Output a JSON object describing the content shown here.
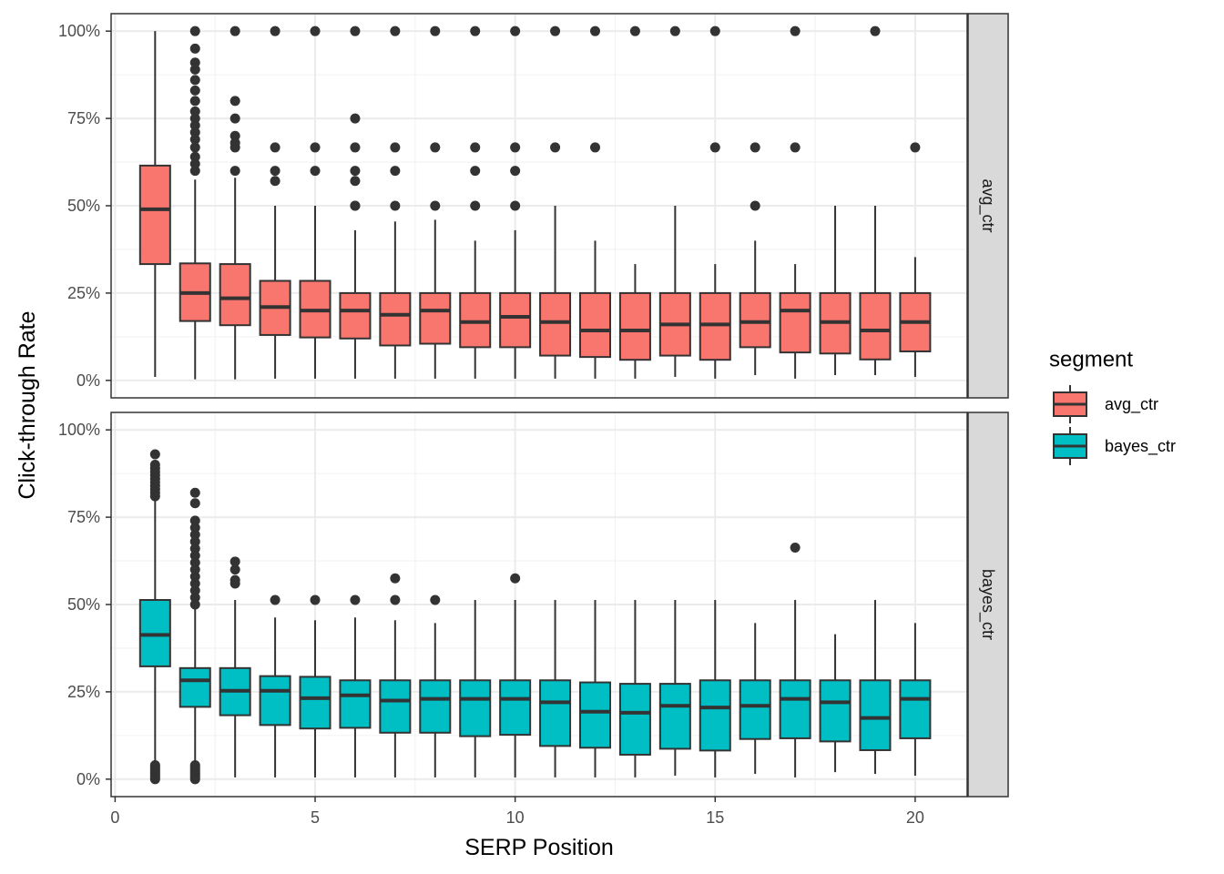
{
  "chart_data": {
    "type": "boxplot",
    "xlabel": "SERP Position",
    "ylabel": "Click-through Rate",
    "xlim": [
      -0.1,
      21.3
    ],
    "ylim": [
      -0.05,
      1.05
    ],
    "x_ticks": [
      0,
      5,
      10,
      15,
      20
    ],
    "x_tick_labels": [
      "0",
      "5",
      "10",
      "15",
      "20"
    ],
    "y_ticks": [
      0,
      0.25,
      0.5,
      0.75,
      1.0
    ],
    "y_tick_labels": [
      "0%",
      "25%",
      "50%",
      "75%",
      "100%"
    ],
    "grid": true,
    "legend": {
      "title": "segment",
      "position": "right",
      "entries": [
        {
          "label": "avg_ctr",
          "color": "#F8766D"
        },
        {
          "label": "bayes_ctr",
          "color": "#00BFC4"
        }
      ]
    },
    "panels": [
      {
        "strip": "avg_ctr",
        "color": "#F8766D",
        "boxes": [
          {
            "x": 1,
            "lower_whisker": 0.01,
            "q1": 0.333,
            "median": 0.49,
            "q3": 0.615,
            "upper_whisker": 1.0,
            "outliers": []
          },
          {
            "x": 2,
            "lower_whisker": 0.003,
            "q1": 0.17,
            "median": 0.25,
            "q3": 0.335,
            "upper_whisker": 0.575,
            "outliers": [
              0.6,
              0.62,
              0.64,
              0.667,
              0.69,
              0.71,
              0.73,
              0.75,
              0.77,
              0.8,
              0.83,
              0.86,
              0.89,
              0.91,
              0.95,
              1.0
            ]
          },
          {
            "x": 3,
            "lower_whisker": 0.003,
            "q1": 0.158,
            "median": 0.235,
            "q3": 0.333,
            "upper_whisker": 0.58,
            "outliers": [
              0.6,
              0.667,
              0.68,
              0.7,
              0.75,
              0.8,
              1.0
            ]
          },
          {
            "x": 4,
            "lower_whisker": 0.005,
            "q1": 0.13,
            "median": 0.21,
            "q3": 0.285,
            "upper_whisker": 0.5,
            "outliers": [
              0.571,
              0.6,
              0.667,
              1.0
            ]
          },
          {
            "x": 5,
            "lower_whisker": 0.005,
            "q1": 0.123,
            "median": 0.2,
            "q3": 0.285,
            "upper_whisker": 0.5,
            "outliers": [
              0.6,
              0.667,
              1.0
            ]
          },
          {
            "x": 6,
            "lower_whisker": 0.005,
            "q1": 0.12,
            "median": 0.2,
            "q3": 0.25,
            "upper_whisker": 0.43,
            "outliers": [
              0.5,
              0.5,
              0.571,
              0.6,
              0.667,
              0.75,
              1.0
            ]
          },
          {
            "x": 7,
            "lower_whisker": 0.005,
            "q1": 0.1,
            "median": 0.188,
            "q3": 0.25,
            "upper_whisker": 0.455,
            "outliers": [
              0.5,
              0.6,
              0.667,
              1.0
            ]
          },
          {
            "x": 8,
            "lower_whisker": 0.005,
            "q1": 0.105,
            "median": 0.2,
            "q3": 0.25,
            "upper_whisker": 0.46,
            "outliers": [
              0.5,
              0.667,
              1.0
            ]
          },
          {
            "x": 9,
            "lower_whisker": 0.005,
            "q1": 0.095,
            "median": 0.167,
            "q3": 0.25,
            "upper_whisker": 0.4,
            "outliers": [
              0.5,
              0.6,
              0.667,
              1.0
            ]
          },
          {
            "x": 10,
            "lower_whisker": 0.005,
            "q1": 0.095,
            "median": 0.182,
            "q3": 0.25,
            "upper_whisker": 0.43,
            "outliers": [
              0.5,
              0.6,
              0.667,
              1.0
            ]
          },
          {
            "x": 11,
            "lower_whisker": 0.005,
            "q1": 0.071,
            "median": 0.167,
            "q3": 0.25,
            "upper_whisker": 0.5,
            "outliers": [
              0.667,
              1.0
            ]
          },
          {
            "x": 12,
            "lower_whisker": 0.005,
            "q1": 0.067,
            "median": 0.143,
            "q3": 0.25,
            "upper_whisker": 0.4,
            "outliers": [
              0.667,
              1.0
            ]
          },
          {
            "x": 13,
            "lower_whisker": 0.005,
            "q1": 0.059,
            "median": 0.143,
            "q3": 0.25,
            "upper_whisker": 0.333,
            "outliers": [
              1.0
            ]
          },
          {
            "x": 14,
            "lower_whisker": 0.01,
            "q1": 0.071,
            "median": 0.16,
            "q3": 0.25,
            "upper_whisker": 0.5,
            "outliers": [
              1.0
            ]
          },
          {
            "x": 15,
            "lower_whisker": 0.005,
            "q1": 0.059,
            "median": 0.16,
            "q3": 0.25,
            "upper_whisker": 0.333,
            "outliers": [
              0.667,
              1.0
            ]
          },
          {
            "x": 16,
            "lower_whisker": 0.015,
            "q1": 0.095,
            "median": 0.167,
            "q3": 0.25,
            "upper_whisker": 0.4,
            "outliers": [
              0.5,
              0.667
            ]
          },
          {
            "x": 17,
            "lower_whisker": 0.005,
            "q1": 0.08,
            "median": 0.2,
            "q3": 0.25,
            "upper_whisker": 0.333,
            "outliers": [
              0.667,
              1.0
            ]
          },
          {
            "x": 18,
            "lower_whisker": 0.015,
            "q1": 0.077,
            "median": 0.167,
            "q3": 0.25,
            "upper_whisker": 0.5,
            "outliers": []
          },
          {
            "x": 19,
            "lower_whisker": 0.015,
            "q1": 0.06,
            "median": 0.143,
            "q3": 0.25,
            "upper_whisker": 0.5,
            "outliers": [
              1.0
            ]
          },
          {
            "x": 20,
            "lower_whisker": 0.01,
            "q1": 0.083,
            "median": 0.167,
            "q3": 0.25,
            "upper_whisker": 0.353,
            "outliers": [
              0.667
            ]
          }
        ]
      },
      {
        "strip": "bayes_ctr",
        "color": "#00BFC4",
        "boxes": [
          {
            "x": 1,
            "lower_whisker": 0.045,
            "q1": 0.323,
            "median": 0.413,
            "q3": 0.513,
            "upper_whisker": 0.805,
            "outliers": [
              0.0,
              0.005,
              0.01,
              0.015,
              0.02,
              0.025,
              0.03,
              0.035,
              0.04,
              0.81,
              0.82,
              0.83,
              0.84,
              0.85,
              0.86,
              0.87,
              0.88,
              0.89,
              0.9,
              0.93
            ]
          },
          {
            "x": 2,
            "lower_whisker": 0.045,
            "q1": 0.207,
            "median": 0.283,
            "q3": 0.318,
            "upper_whisker": 0.495,
            "outliers": [
              0.0,
              0.005,
              0.01,
              0.015,
              0.02,
              0.025,
              0.03,
              0.035,
              0.04,
              0.5,
              0.52,
              0.54,
              0.56,
              0.58,
              0.6,
              0.62,
              0.64,
              0.66,
              0.68,
              0.7,
              0.72,
              0.74,
              0.79,
              0.82
            ]
          },
          {
            "x": 3,
            "lower_whisker": 0.005,
            "q1": 0.183,
            "median": 0.253,
            "q3": 0.318,
            "upper_whisker": 0.513,
            "outliers": [
              0.56,
              0.57,
              0.6,
              0.623
            ]
          },
          {
            "x": 4,
            "lower_whisker": 0.005,
            "q1": 0.155,
            "median": 0.253,
            "q3": 0.295,
            "upper_whisker": 0.463,
            "outliers": [
              0.513
            ]
          },
          {
            "x": 5,
            "lower_whisker": 0.005,
            "q1": 0.145,
            "median": 0.232,
            "q3": 0.293,
            "upper_whisker": 0.455,
            "outliers": [
              0.513
            ]
          },
          {
            "x": 6,
            "lower_whisker": 0.005,
            "q1": 0.147,
            "median": 0.24,
            "q3": 0.283,
            "upper_whisker": 0.463,
            "outliers": [
              0.513
            ]
          },
          {
            "x": 7,
            "lower_whisker": 0.005,
            "q1": 0.133,
            "median": 0.225,
            "q3": 0.283,
            "upper_whisker": 0.455,
            "outliers": [
              0.513,
              0.575
            ]
          },
          {
            "x": 8,
            "lower_whisker": 0.005,
            "q1": 0.133,
            "median": 0.23,
            "q3": 0.283,
            "upper_whisker": 0.447,
            "outliers": [
              0.513
            ]
          },
          {
            "x": 9,
            "lower_whisker": 0.005,
            "q1": 0.123,
            "median": 0.23,
            "q3": 0.283,
            "upper_whisker": 0.513,
            "outliers": []
          },
          {
            "x": 10,
            "lower_whisker": 0.005,
            "q1": 0.127,
            "median": 0.23,
            "q3": 0.283,
            "upper_whisker": 0.513,
            "outliers": [
              0.575
            ]
          },
          {
            "x": 11,
            "lower_whisker": 0.005,
            "q1": 0.095,
            "median": 0.22,
            "q3": 0.283,
            "upper_whisker": 0.513,
            "outliers": []
          },
          {
            "x": 12,
            "lower_whisker": 0.005,
            "q1": 0.09,
            "median": 0.193,
            "q3": 0.277,
            "upper_whisker": 0.513,
            "outliers": []
          },
          {
            "x": 13,
            "lower_whisker": 0.005,
            "q1": 0.07,
            "median": 0.19,
            "q3": 0.273,
            "upper_whisker": 0.513,
            "outliers": []
          },
          {
            "x": 14,
            "lower_whisker": 0.01,
            "q1": 0.087,
            "median": 0.21,
            "q3": 0.273,
            "upper_whisker": 0.513,
            "outliers": []
          },
          {
            "x": 15,
            "lower_whisker": 0.005,
            "q1": 0.082,
            "median": 0.205,
            "q3": 0.283,
            "upper_whisker": 0.513,
            "outliers": []
          },
          {
            "x": 16,
            "lower_whisker": 0.015,
            "q1": 0.115,
            "median": 0.21,
            "q3": 0.283,
            "upper_whisker": 0.447,
            "outliers": []
          },
          {
            "x": 17,
            "lower_whisker": 0.005,
            "q1": 0.117,
            "median": 0.23,
            "q3": 0.283,
            "upper_whisker": 0.513,
            "outliers": [
              0.663
            ]
          },
          {
            "x": 18,
            "lower_whisker": 0.02,
            "q1": 0.108,
            "median": 0.22,
            "q3": 0.283,
            "upper_whisker": 0.415,
            "outliers": []
          },
          {
            "x": 19,
            "lower_whisker": 0.015,
            "q1": 0.083,
            "median": 0.175,
            "q3": 0.283,
            "upper_whisker": 0.513,
            "outliers": []
          },
          {
            "x": 20,
            "lower_whisker": 0.01,
            "q1": 0.117,
            "median": 0.23,
            "q3": 0.283,
            "upper_whisker": 0.447,
            "outliers": []
          }
        ]
      }
    ]
  }
}
